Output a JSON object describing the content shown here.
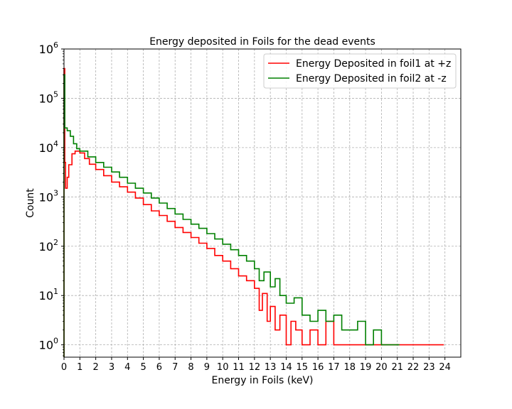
{
  "chart_data": {
    "type": "line",
    "title": "Energy deposited in Foils for the dead events",
    "xlabel": "Energy in Foils (keV)",
    "ylabel": "Count",
    "xlim": [
      0,
      25
    ],
    "ylim_exp": [
      -0.25,
      6
    ],
    "yscale": "log",
    "grid": true,
    "legend_position": "top-right",
    "x_ticks": [
      "0",
      "1",
      "2",
      "3",
      "4",
      "5",
      "6",
      "7",
      "8",
      "9",
      "10",
      "11",
      "12",
      "13",
      "14",
      "15",
      "16",
      "17",
      "18",
      "19",
      "20",
      "21",
      "22",
      "23",
      "24"
    ],
    "y_ticks": [
      {
        "base": "10",
        "exp": "0",
        "value": 1
      },
      {
        "base": "10",
        "exp": "1",
        "value": 10
      },
      {
        "base": "10",
        "exp": "2",
        "value": 100
      },
      {
        "base": "10",
        "exp": "3",
        "value": 1000
      },
      {
        "base": "10",
        "exp": "4",
        "value": 10000
      },
      {
        "base": "10",
        "exp": "5",
        "value": 100000
      },
      {
        "base": "10",
        "exp": "6",
        "value": 1000000
      }
    ],
    "series": [
      {
        "name": "Energy Deposited in foil1 at +z",
        "color": "#ff0000",
        "points": [
          [
            0,
            400000
          ],
          [
            0.05,
            5000
          ],
          [
            0.1,
            1500
          ],
          [
            0.2,
            2500
          ],
          [
            0.3,
            4500
          ],
          [
            0.5,
            7500
          ],
          [
            0.7,
            8500
          ],
          [
            1.0,
            7800
          ],
          [
            1.3,
            6000
          ],
          [
            1.6,
            4600
          ],
          [
            2,
            3600
          ],
          [
            2.5,
            2700
          ],
          [
            3,
            2000
          ],
          [
            3.5,
            1600
          ],
          [
            4,
            1250
          ],
          [
            4.5,
            950
          ],
          [
            5,
            700
          ],
          [
            5.5,
            520
          ],
          [
            6,
            420
          ],
          [
            6.5,
            320
          ],
          [
            7,
            240
          ],
          [
            7.5,
            190
          ],
          [
            8,
            150
          ],
          [
            8.5,
            115
          ],
          [
            9,
            90
          ],
          [
            9.5,
            65
          ],
          [
            10,
            50
          ],
          [
            10.5,
            35
          ],
          [
            11,
            25
          ],
          [
            11.5,
            20
          ],
          [
            12,
            14
          ],
          [
            12.3,
            5
          ],
          [
            12.5,
            11
          ],
          [
            12.8,
            3
          ],
          [
            13,
            6
          ],
          [
            13.3,
            2
          ],
          [
            13.6,
            4
          ],
          [
            14,
            1
          ],
          [
            14.3,
            3
          ],
          [
            14.6,
            2
          ],
          [
            15,
            1
          ],
          [
            15.5,
            2
          ],
          [
            16,
            1
          ],
          [
            16.5,
            3
          ],
          [
            17,
            1
          ],
          [
            17.5,
            1
          ],
          [
            18,
            1
          ],
          [
            22.8,
            1
          ],
          [
            23.8,
            1
          ]
        ]
      },
      {
        "name": "Energy Deposited in foil2 at -z",
        "color": "#008000",
        "points": [
          [
            0,
            300000
          ],
          [
            0.05,
            25000
          ],
          [
            0.2,
            22000
          ],
          [
            0.4,
            17000
          ],
          [
            0.6,
            12000
          ],
          [
            0.8,
            9500
          ],
          [
            1.0,
            8500
          ],
          [
            1.5,
            6500
          ],
          [
            2,
            5000
          ],
          [
            2.5,
            4000
          ],
          [
            3,
            3200
          ],
          [
            3.5,
            2500
          ],
          [
            4,
            1900
          ],
          [
            4.5,
            1500
          ],
          [
            5,
            1200
          ],
          [
            5.5,
            950
          ],
          [
            6,
            750
          ],
          [
            6.5,
            580
          ],
          [
            7,
            450
          ],
          [
            7.5,
            350
          ],
          [
            8,
            280
          ],
          [
            8.5,
            230
          ],
          [
            9,
            180
          ],
          [
            9.5,
            140
          ],
          [
            10,
            110
          ],
          [
            10.5,
            85
          ],
          [
            11,
            65
          ],
          [
            11.5,
            50
          ],
          [
            12,
            35
          ],
          [
            12.3,
            20
          ],
          [
            12.6,
            30
          ],
          [
            13,
            15
          ],
          [
            13.3,
            22
          ],
          [
            13.6,
            10
          ],
          [
            14,
            7
          ],
          [
            14.5,
            9
          ],
          [
            15,
            4
          ],
          [
            15.5,
            3
          ],
          [
            16,
            5
          ],
          [
            16.5,
            3
          ],
          [
            17,
            4
          ],
          [
            17.5,
            2
          ],
          [
            18,
            2
          ],
          [
            18.5,
            3
          ],
          [
            19,
            1
          ],
          [
            19.5,
            2
          ],
          [
            20,
            1
          ],
          [
            20.5,
            1
          ],
          [
            21,
            1
          ]
        ]
      }
    ]
  }
}
